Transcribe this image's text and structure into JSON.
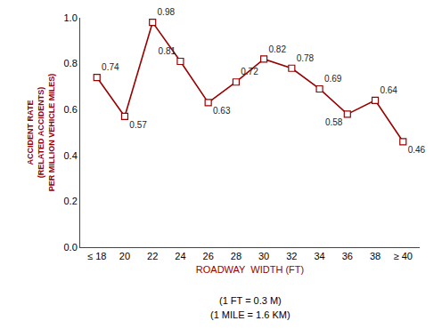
{
  "chart_data": {
    "type": "line",
    "categories": [
      "≤ 18",
      "20",
      "22",
      "24",
      "26",
      "28",
      "30",
      "32",
      "34",
      "36",
      "38",
      "≥ 40"
    ],
    "values": [
      0.74,
      0.57,
      0.98,
      0.81,
      0.63,
      0.72,
      0.82,
      0.78,
      0.69,
      0.58,
      0.64,
      0.46
    ],
    "color": "#990000",
    "marker": "square",
    "line_style": "solid",
    "data_labels": true,
    "ylabel": "ACCIDENT RATE\n(RELATED ACCIDENTS)\nPER MILLION VEHICLE MILES)",
    "xlabel": "ROADWAY  WIDTH (FT)",
    "annotations": [
      "(1 FT = 0.3 M)",
      "(1 MILE = 1.6 KM)"
    ],
    "ylim": [
      0.0,
      1.0
    ],
    "yticks": [
      {
        "value": 0.0,
        "label": "0.0"
      },
      0.2,
      0.4,
      0.6,
      0.8,
      {
        "value": 1.0,
        "label": "1.0"
      }
    ],
    "grid": false
  }
}
